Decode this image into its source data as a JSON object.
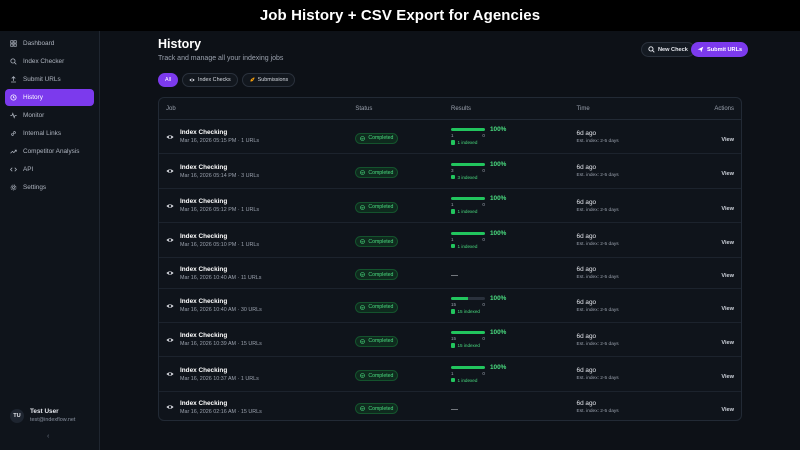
{
  "banner": {
    "title": "Job History + CSV Export for Agencies"
  },
  "sidebar": {
    "items": [
      {
        "label": "Dashboard",
        "icon": "grid-icon"
      },
      {
        "label": "Index Checker",
        "icon": "search-icon"
      },
      {
        "label": "Submit URLs",
        "icon": "upload-icon"
      },
      {
        "label": "History",
        "icon": "history-icon",
        "active": true
      },
      {
        "label": "Monitor",
        "icon": "monitor-icon"
      },
      {
        "label": "Internal Links",
        "icon": "link-icon"
      },
      {
        "label": "Competitor Analysis",
        "icon": "trend-icon"
      },
      {
        "label": "API",
        "icon": "code-icon"
      },
      {
        "label": "Settings",
        "icon": "gear-icon"
      }
    ],
    "user": {
      "initials": "TU",
      "name": "Test User",
      "email": "test@indexflow.net"
    },
    "collapse": "‹"
  },
  "header": {
    "title": "History",
    "subtitle": "Track and manage all your indexing jobs",
    "new_check": "New Check",
    "submit_urls": "Submit URLs"
  },
  "filters": [
    {
      "label": "All",
      "active": true
    },
    {
      "label": "Index Checks",
      "icon": "eye-icon"
    },
    {
      "label": "Submissions",
      "icon": "rocket-icon"
    }
  ],
  "table": {
    "columns": {
      "job": "Job",
      "status": "Status",
      "results": "Results",
      "time": "Time",
      "actions": "Actions"
    },
    "rows": [
      {
        "title": "Index Checking",
        "meta": "Mar 16, 2026 05:15 PM · 1 URLs",
        "status": "Completed",
        "has_results": true,
        "progress": 1.0,
        "left": "1",
        "right": "0",
        "indexed": "1 indexed",
        "pct": "100%",
        "time": "6d ago",
        "est": "Est. index: 2-5 days",
        "action": "View"
      },
      {
        "title": "Index Checking",
        "meta": "Mar 16, 2026 05:14 PM · 3 URLs",
        "status": "Completed",
        "has_results": true,
        "progress": 1.0,
        "left": "3",
        "right": "0",
        "indexed": "3 indexed",
        "pct": "100%",
        "time": "6d ago",
        "est": "Est. index: 2-5 days",
        "action": "View"
      },
      {
        "title": "Index Checking",
        "meta": "Mar 16, 2026 05:12 PM · 1 URLs",
        "status": "Completed",
        "has_results": true,
        "progress": 1.0,
        "left": "1",
        "right": "0",
        "indexed": "1 indexed",
        "pct": "100%",
        "time": "6d ago",
        "est": "Est. index: 2-5 days",
        "action": "View"
      },
      {
        "title": "Index Checking",
        "meta": "Mar 16, 2026 05:10 PM · 1 URLs",
        "status": "Completed",
        "has_results": true,
        "progress": 1.0,
        "left": "1",
        "right": "0",
        "indexed": "1 indexed",
        "pct": "100%",
        "time": "6d ago",
        "est": "Est. index: 2-5 days",
        "action": "View"
      },
      {
        "title": "Index Checking",
        "meta": "Mar 16, 2026 10:40 AM · 11 URLs",
        "status": "Completed",
        "has_results": false,
        "dash": "—",
        "time": "6d ago",
        "est": "Est. index: 2-5 days",
        "action": "View"
      },
      {
        "title": "Index Checking",
        "meta": "Mar 16, 2026 10:40 AM · 30 URLs",
        "status": "Completed",
        "has_results": true,
        "progress": 0.5,
        "left": "15",
        "right": "0",
        "indexed": "15 indexed",
        "pct": "100%",
        "time": "6d ago",
        "est": "Est. index: 2-5 days",
        "action": "View"
      },
      {
        "title": "Index Checking",
        "meta": "Mar 16, 2026 10:39 AM · 15 URLs",
        "status": "Completed",
        "has_results": true,
        "progress": 1.0,
        "left": "15",
        "right": "0",
        "indexed": "15 indexed",
        "pct": "100%",
        "time": "6d ago",
        "est": "Est. index: 2-5 days",
        "action": "View"
      },
      {
        "title": "Index Checking",
        "meta": "Mar 16, 2026 10:37 AM · 1 URLs",
        "status": "Completed",
        "has_results": true,
        "progress": 1.0,
        "left": "1",
        "right": "0",
        "indexed": "1 indexed",
        "pct": "100%",
        "time": "6d ago",
        "est": "Est. index: 2-5 days",
        "action": "View"
      },
      {
        "title": "Index Checking",
        "meta": "Mar 16, 2026 02:16 AM · 15 URLs",
        "status": "Completed",
        "has_results": false,
        "dash": "—",
        "time": "6d ago",
        "est": "Est. index: 2-5 days",
        "action": "View"
      }
    ]
  },
  "colors": {
    "accent": "#7c3aed",
    "success": "#22c55e",
    "background": "#0d1117"
  }
}
